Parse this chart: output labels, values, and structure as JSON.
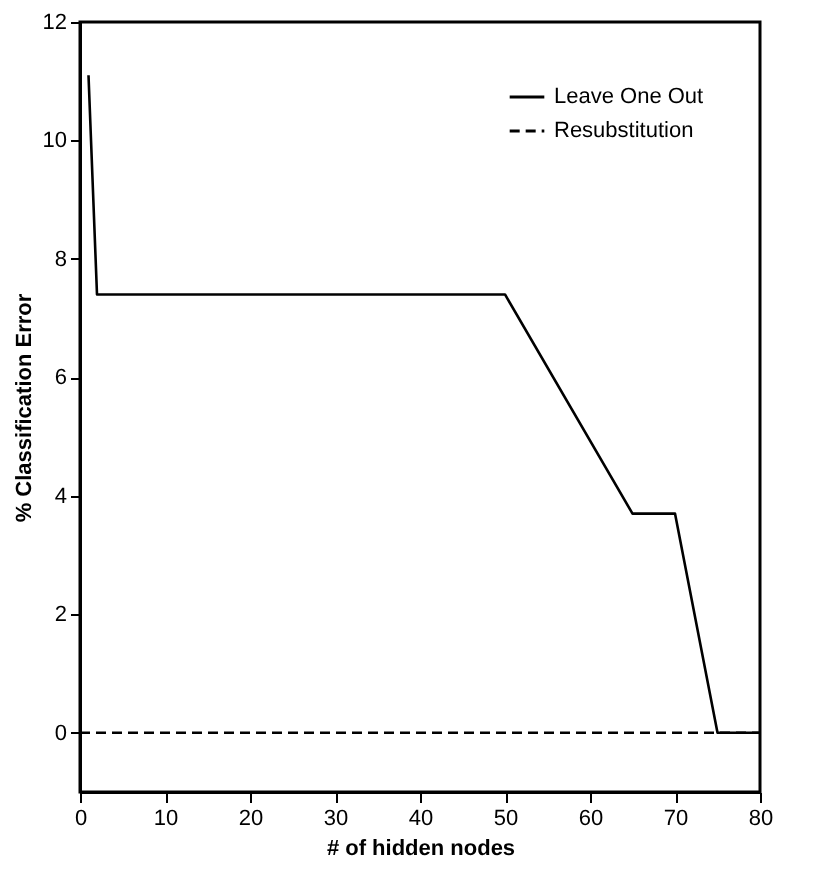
{
  "chart_data": {
    "type": "line",
    "xlabel": "# of hidden nodes",
    "ylabel": "% Classification Error",
    "xlim": [
      0,
      80
    ],
    "ylim": [
      -1,
      12
    ],
    "xticks": [
      0,
      10,
      20,
      30,
      40,
      50,
      60,
      70,
      80
    ],
    "yticks": [
      0,
      2,
      4,
      6,
      8,
      10,
      12
    ],
    "grid": false,
    "legend": "top right",
    "series": [
      {
        "name": "Leave One Out",
        "color": "#000000",
        "line_style": "solid",
        "x": [
          1,
          2,
          50,
          65,
          70,
          75,
          80
        ],
        "values": [
          11.1,
          7.4,
          7.4,
          3.7,
          3.7,
          0,
          0
        ]
      },
      {
        "name": "Resubstitution",
        "color": "#000000",
        "line_style": "dashed",
        "x": [
          0,
          80
        ],
        "values": [
          0,
          0
        ]
      }
    ]
  }
}
